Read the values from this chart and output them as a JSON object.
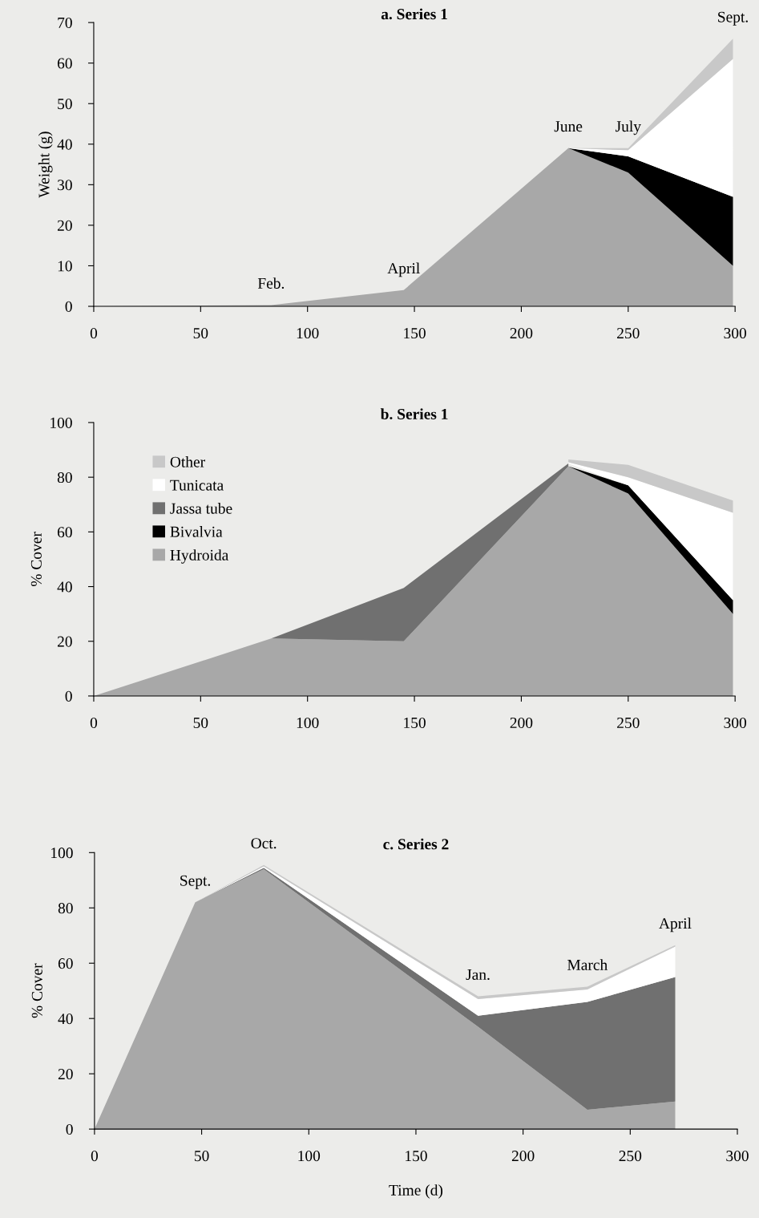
{
  "chart_data": [
    {
      "type": "area",
      "stacked": true,
      "title": "a. Series 1",
      "ylabel": "Weight (g)",
      "x": [
        0,
        83,
        145,
        222,
        250,
        299
      ],
      "xlim": [
        0,
        300
      ],
      "xticks": [
        0,
        50,
        100,
        150,
        200,
        250,
        300
      ],
      "ylim": [
        0,
        70
      ],
      "yticks": [
        0,
        10,
        20,
        30,
        40,
        50,
        60,
        70
      ],
      "grid": false,
      "legend": false,
      "series": [
        {
          "color": "#a8a8a8",
          "values": [
            0,
            0.3,
            4,
            39,
            33,
            10
          ]
        },
        {
          "color": "#000000",
          "values": [
            null,
            null,
            null,
            0,
            4,
            17
          ]
        },
        {
          "color": "#ffffff",
          "values": [
            null,
            null,
            null,
            0,
            1.5,
            34
          ]
        },
        {
          "color": "#c8c8c8",
          "values": [
            null,
            null,
            null,
            0,
            0.5,
            5
          ]
        }
      ],
      "annotations": [
        {
          "text": "Feb.",
          "x": 83,
          "y": 0.3
        },
        {
          "text": "April",
          "x": 145,
          "y": 4
        },
        {
          "text": "June",
          "x": 222,
          "y": 39
        },
        {
          "text": "July",
          "x": 250,
          "y": 39
        },
        {
          "text": "Sept.",
          "x": 299,
          "y": 66
        }
      ]
    },
    {
      "type": "area",
      "stacked": true,
      "title": "b. Series 1",
      "ylabel": "% Cover",
      "x": [
        0,
        83,
        145,
        222,
        250,
        299
      ],
      "xlim": [
        0,
        300
      ],
      "xticks": [
        0,
        50,
        100,
        150,
        200,
        250,
        300
      ],
      "ylim": [
        0,
        100
      ],
      "yticks": [
        0,
        20,
        40,
        60,
        80,
        100
      ],
      "grid": false,
      "legend": "top left",
      "series": [
        {
          "name": "Hydroida",
          "color": "#a8a8a8",
          "values": [
            0,
            21,
            20,
            84,
            74,
            30
          ]
        },
        {
          "name": "Bivalvia",
          "color": "#000000",
          "values": [
            null,
            null,
            null,
            0,
            3,
            5
          ]
        },
        {
          "name": "Jassa tube",
          "color": "#707070",
          "values": [
            null,
            0,
            19.5,
            1,
            null,
            null
          ]
        },
        {
          "name": "Tunicata",
          "color": "#ffffff",
          "values": [
            null,
            null,
            null,
            0.5,
            3,
            32
          ]
        },
        {
          "name": "Other",
          "color": "#c8c8c8",
          "values": [
            null,
            null,
            null,
            1,
            4.5,
            4.5
          ]
        }
      ]
    },
    {
      "type": "area",
      "stacked": true,
      "title": "c. Series 2",
      "ylabel": "% Cover",
      "xlabel": "Time (d)",
      "x": [
        0,
        47,
        79,
        179,
        230,
        271
      ],
      "xlim": [
        0,
        300
      ],
      "xticks": [
        0,
        50,
        100,
        150,
        200,
        250,
        300
      ],
      "ylim": [
        0,
        100
      ],
      "yticks": [
        0,
        20,
        40,
        60,
        80,
        100
      ],
      "grid": false,
      "legend": false,
      "series": [
        {
          "color": "#a8a8a8",
          "values": [
            0,
            82,
            94,
            37,
            7,
            10
          ]
        },
        {
          "color": "#707070",
          "values": [
            0,
            0,
            0.5,
            4,
            39,
            45
          ]
        },
        {
          "color": "#ffffff",
          "values": [
            0,
            0,
            0.5,
            6,
            4.5,
            11
          ]
        },
        {
          "color": "#c8c8c8",
          "values": [
            0,
            0,
            0.5,
            1,
            1,
            0.5
          ]
        }
      ],
      "annotations": [
        {
          "text": "Sept.",
          "x": 47,
          "y": 82
        },
        {
          "text": "Oct.",
          "x": 79,
          "y": 95.5
        },
        {
          "text": "Jan.",
          "x": 179,
          "y": 48
        },
        {
          "text": "March",
          "x": 230,
          "y": 51.5
        },
        {
          "text": "April",
          "x": 271,
          "y": 66.5
        }
      ]
    }
  ]
}
